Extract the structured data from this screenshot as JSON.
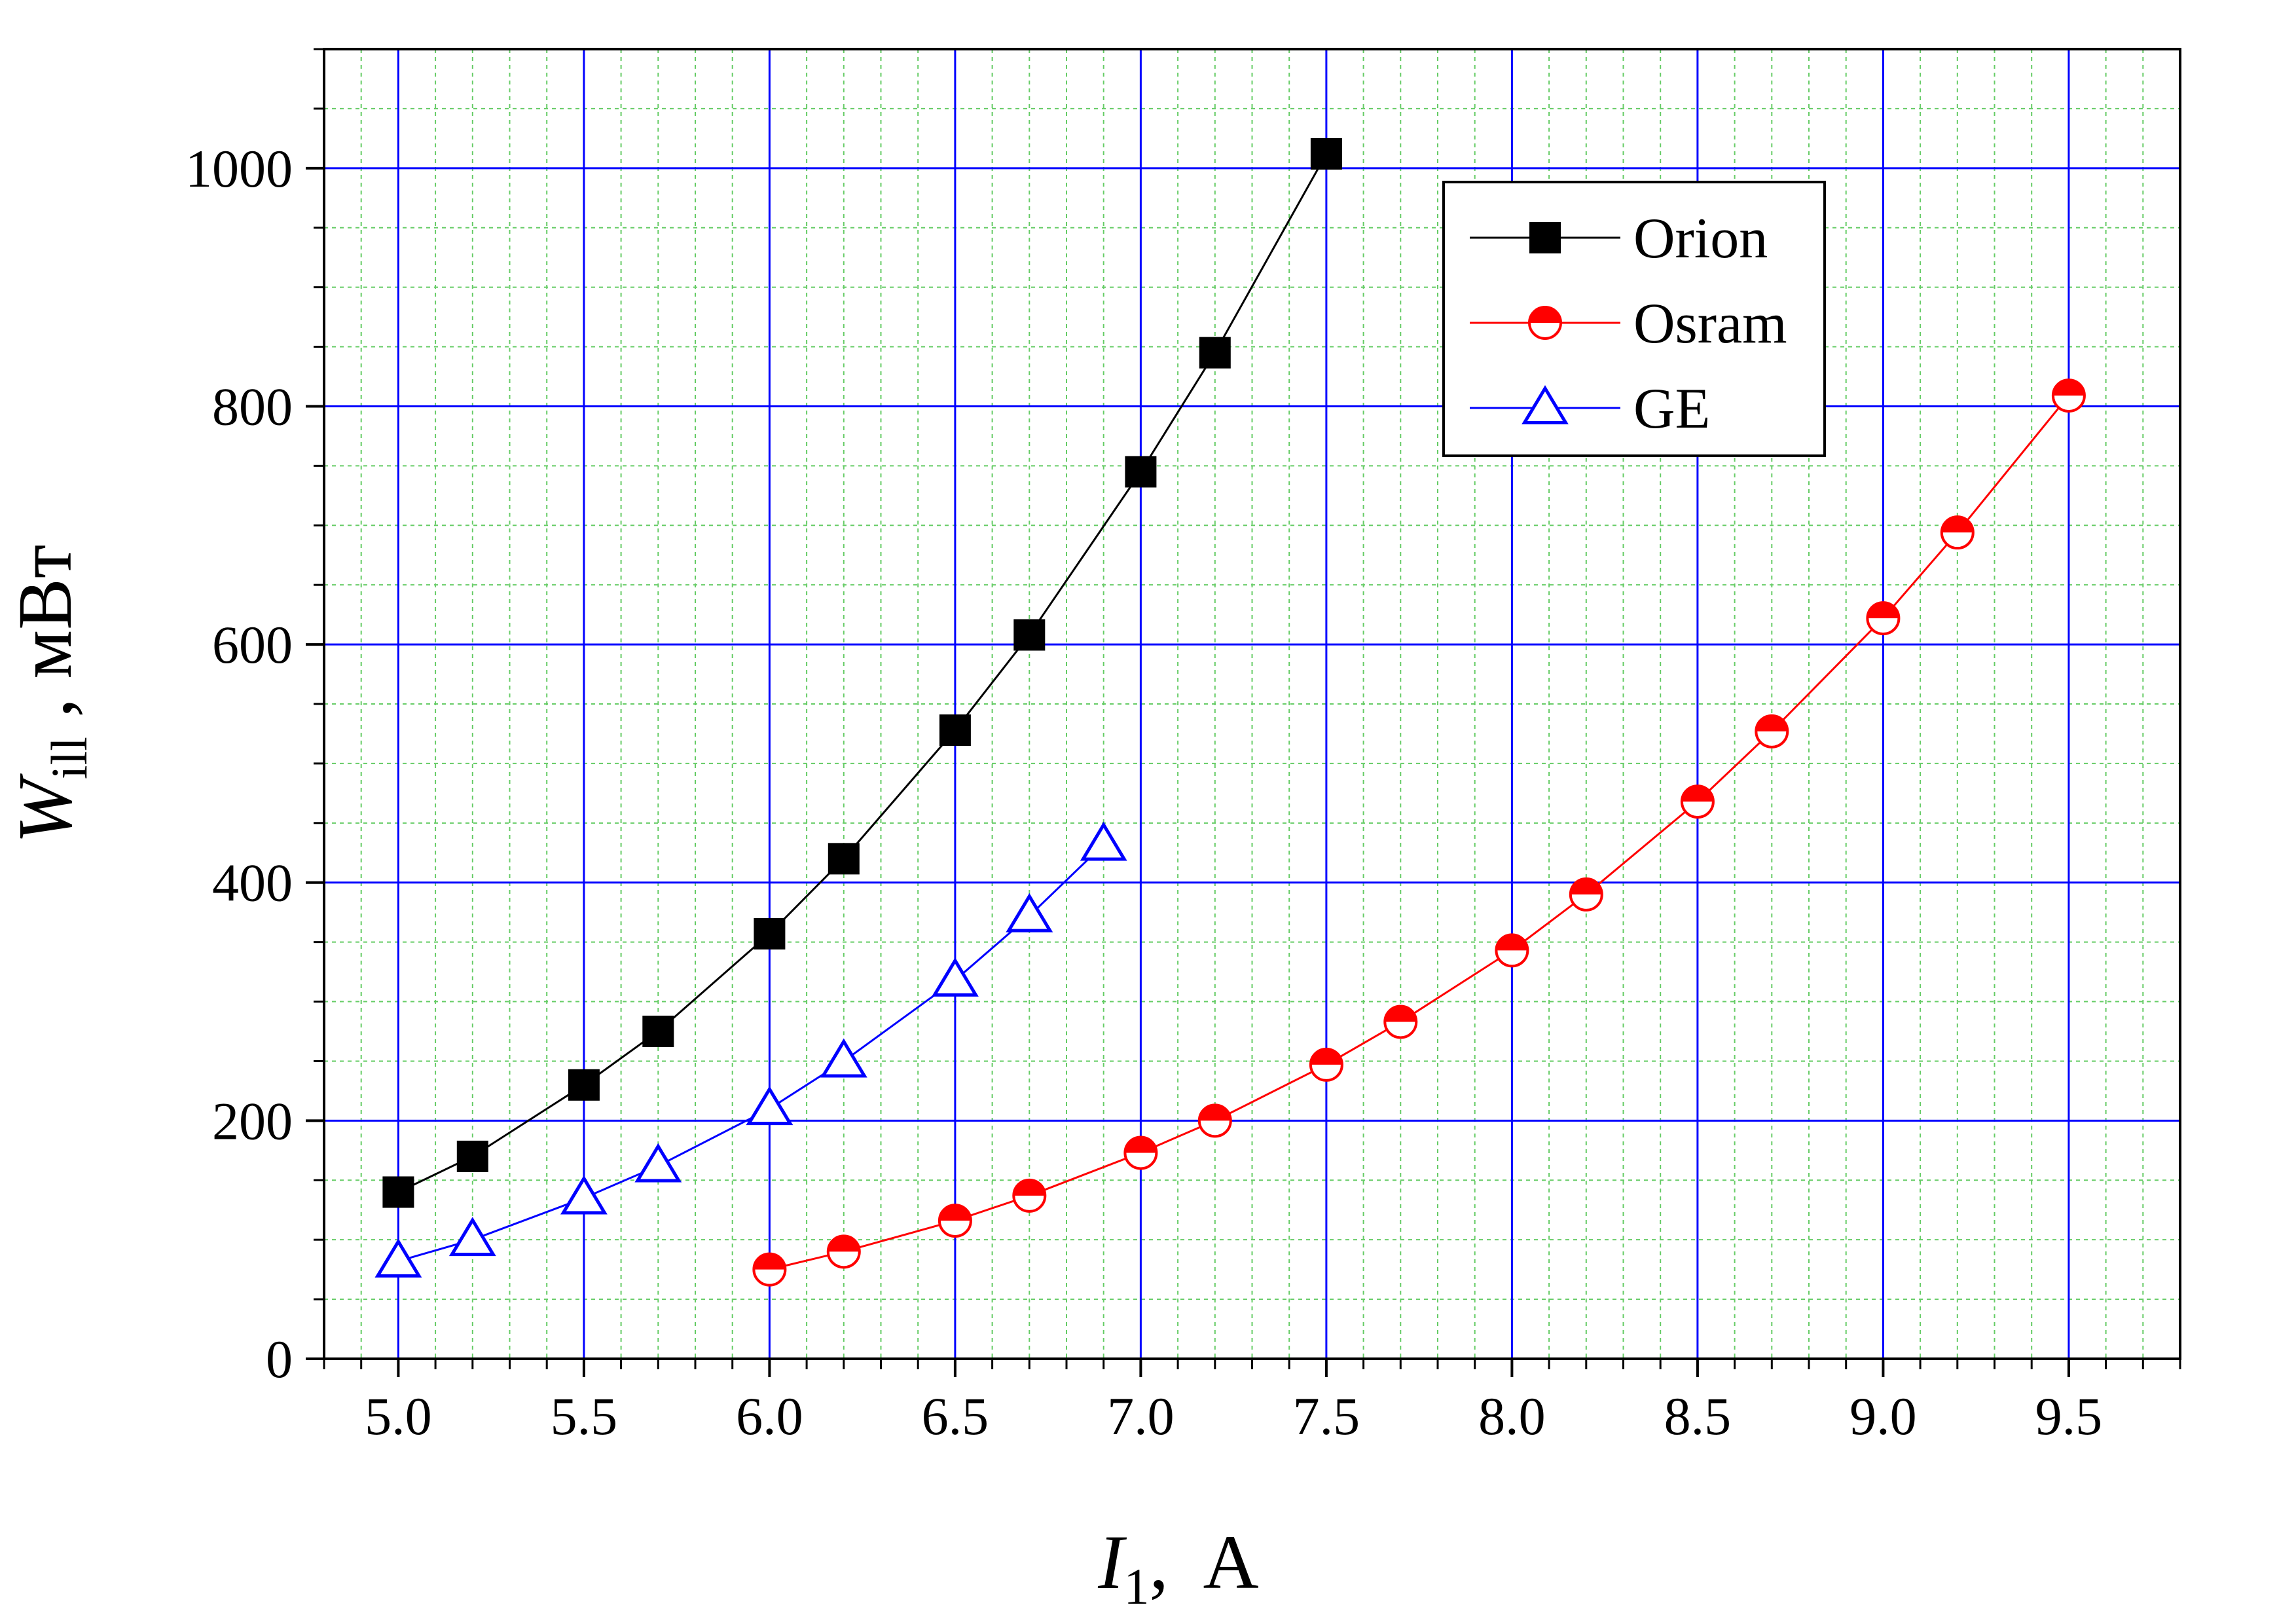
{
  "chart_data": {
    "type": "line",
    "xlabel": {
      "symbol": "I",
      "sub": "1",
      "unit": ",  A"
    },
    "ylabel": {
      "symbol": "W",
      "sub": "ill",
      "unit": " , мВт"
    },
    "xlim": [
      4.8,
      9.8
    ],
    "ylim": [
      0,
      1100
    ],
    "x_ticks": [
      "5.0",
      "5.5",
      "6.0",
      "6.5",
      "7.0",
      "7.5",
      "8.0",
      "8.5",
      "9.0",
      "9.5"
    ],
    "y_ticks": [
      "0",
      "200",
      "400",
      "600",
      "800",
      "1000"
    ],
    "grid": {
      "major": true,
      "minor": true,
      "major_color": "#0000ff",
      "minor_color": "#66cc66"
    },
    "legend_position": "top-right",
    "series": [
      {
        "name": "Orion",
        "color": "#000000",
        "marker": "square-filled",
        "x": [
          5.0,
          5.2,
          5.5,
          5.7,
          6.0,
          6.2,
          6.5,
          6.7,
          7.0,
          7.2,
          7.5
        ],
        "y": [
          140,
          170,
          230,
          275,
          357,
          420,
          528,
          608,
          745,
          845,
          1012
        ]
      },
      {
        "name": "Osram",
        "color": "#ff0000",
        "marker": "circle-half",
        "x": [
          6.0,
          6.2,
          6.5,
          6.7,
          7.0,
          7.2,
          7.5,
          7.7,
          8.0,
          8.2,
          8.5,
          8.7,
          9.0,
          9.2,
          9.5
        ],
        "y": [
          75,
          90,
          116,
          137,
          173,
          200,
          247,
          283,
          343,
          390,
          468,
          527,
          622,
          694,
          809
        ]
      },
      {
        "name": "GE",
        "color": "#0000ff",
        "marker": "triangle-open",
        "x": [
          5.0,
          5.2,
          5.5,
          5.7,
          6.0,
          6.2,
          6.5,
          6.7,
          6.9
        ],
        "y": [
          82,
          100,
          135,
          162,
          210,
          250,
          318,
          372,
          432
        ]
      }
    ]
  }
}
